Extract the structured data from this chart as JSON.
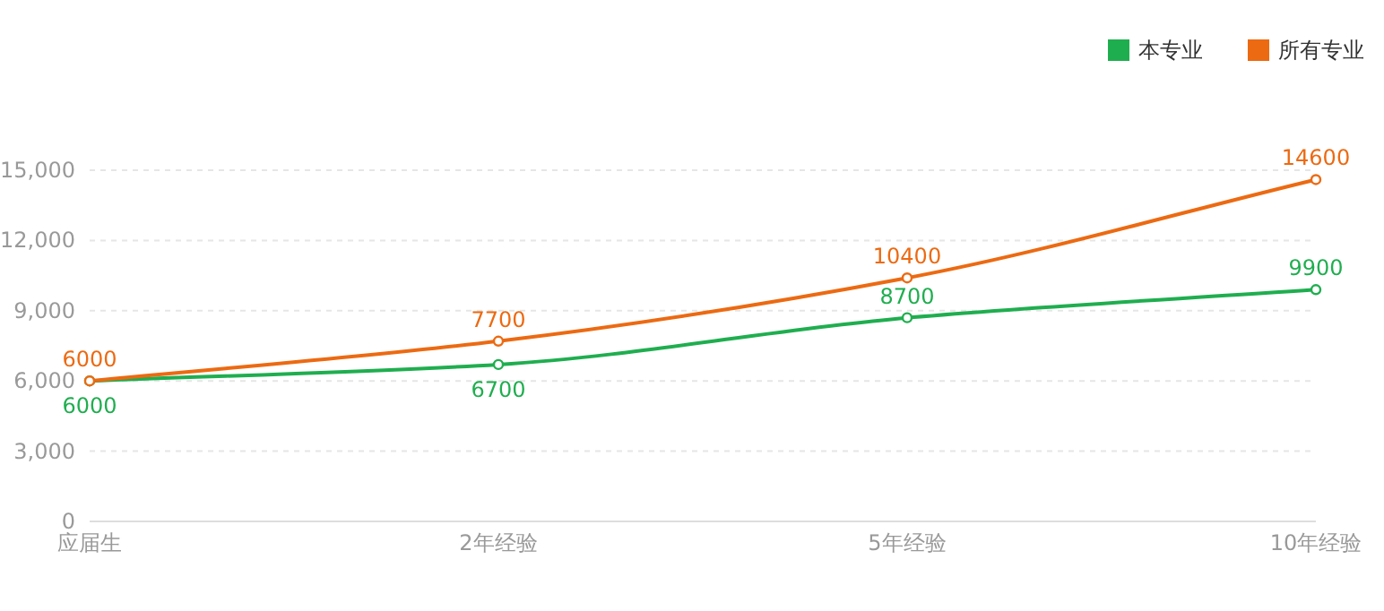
{
  "chart_data": {
    "type": "line",
    "categories": [
      "应届生",
      "2年经验",
      "5年经验",
      "10年经验"
    ],
    "series": [
      {
        "name": "本专业",
        "color": "#1fae4f",
        "values": [
          6000,
          6700,
          8700,
          9900
        ]
      },
      {
        "name": "所有专业",
        "color": "#ec6a12",
        "values": [
          6000,
          7700,
          10400,
          14600
        ]
      }
    ],
    "ylim": [
      0,
      15000
    ],
    "yticks": [
      {
        "value": 0,
        "label": "0"
      },
      {
        "value": 3000,
        "label": "3,000"
      },
      {
        "value": 6000,
        "label": "6,000"
      },
      {
        "value": 9000,
        "label": "9,000"
      },
      {
        "value": 12000,
        "label": "12,000"
      },
      {
        "value": 15000,
        "label": "15,000"
      }
    ],
    "grid": "y",
    "legend": "top right",
    "marker": "circle",
    "line_style": "solid",
    "data_labels": true
  }
}
